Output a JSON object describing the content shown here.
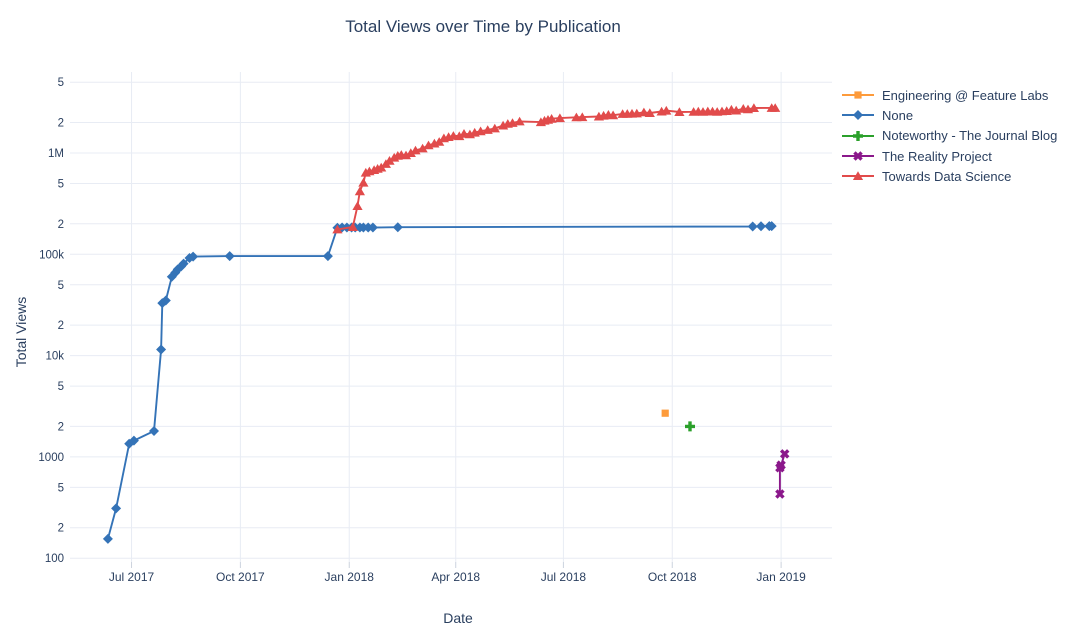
{
  "chart_data": {
    "type": "scatter",
    "title": "Total Views over Time by Publication",
    "xlabel": "Date",
    "ylabel": "Total Views",
    "y_scale": "log",
    "grid": true,
    "legend_position": "right",
    "text_color": "#2a3f5f",
    "grid_color": "#e8ecf4",
    "x_range": [
      "2017-05-10",
      "2019-02-13"
    ],
    "y_range_log10": [
      1.9625,
      6.7996
    ],
    "x_ticks": [
      {
        "date": "2017-07-01",
        "label": "Jul 2017"
      },
      {
        "date": "2017-10-01",
        "label": "Oct 2017"
      },
      {
        "date": "2018-01-01",
        "label": "Jan 2018"
      },
      {
        "date": "2018-04-01",
        "label": "Apr 2018"
      },
      {
        "date": "2018-07-01",
        "label": "Jul 2018"
      },
      {
        "date": "2018-10-01",
        "label": "Oct 2018"
      },
      {
        "date": "2019-01-01",
        "label": "Jan 2019"
      }
    ],
    "y_ticks": [
      {
        "value": 5000000,
        "label": "5"
      },
      {
        "value": 2000000,
        "label": "2"
      },
      {
        "value": 1000000,
        "label": "1M"
      },
      {
        "value": 500000,
        "label": "5"
      },
      {
        "value": 200000,
        "label": "2"
      },
      {
        "value": 100000,
        "label": "100k"
      },
      {
        "value": 50000,
        "label": "5"
      },
      {
        "value": 20000,
        "label": "2"
      },
      {
        "value": 10000,
        "label": "10k"
      },
      {
        "value": 5000,
        "label": "5"
      },
      {
        "value": 2000,
        "label": "2"
      },
      {
        "value": 1000,
        "label": "1000"
      },
      {
        "value": 500,
        "label": "5"
      },
      {
        "value": 200,
        "label": "2"
      },
      {
        "value": 100,
        "label": "100"
      }
    ],
    "series": [
      {
        "name": "Engineering @ Feature Labs",
        "color": "#fd9b3b",
        "marker": "square",
        "segments": [
          [
            [
              "2018-09-25",
              2700
            ]
          ]
        ]
      },
      {
        "name": "None",
        "color": "#3473b7",
        "marker": "diamond",
        "segments": [
          [
            [
              "2017-06-11",
              155
            ],
            [
              "2017-06-18",
              310
            ],
            [
              "2017-06-29",
              1350
            ],
            [
              "2017-07-03",
              1450
            ],
            [
              "2017-07-20",
              1800
            ],
            [
              "2017-07-26",
              11500
            ],
            [
              "2017-07-27",
              33000
            ],
            [
              "2017-07-30",
              35000
            ],
            [
              "2017-08-04",
              60000
            ],
            [
              "2017-08-07",
              66000
            ],
            [
              "2017-08-09",
              71000
            ],
            [
              "2017-08-12",
              76000
            ],
            [
              "2017-08-14",
              81000
            ],
            [
              "2017-08-19",
              92000
            ],
            [
              "2017-08-22",
              95000
            ],
            [
              "2017-09-22",
              96000
            ],
            [
              "2017-12-14",
              96000
            ],
            [
              "2017-12-22",
              183000
            ],
            [
              "2017-12-26",
              184000
            ],
            [
              "2017-12-30",
              184000
            ],
            [
              "2018-01-03",
              184000
            ],
            [
              "2018-01-06",
              184000
            ],
            [
              "2018-01-10",
              184000
            ],
            [
              "2018-01-13",
              184000
            ],
            [
              "2018-01-17",
              184000
            ],
            [
              "2018-01-21",
              184000
            ],
            [
              "2018-02-11",
              185000
            ],
            [
              "2018-12-08",
              188000
            ],
            [
              "2018-12-15",
              189000
            ],
            [
              "2018-12-22",
              190000
            ],
            [
              "2018-12-24",
              190000
            ]
          ]
        ]
      },
      {
        "name": "Noteworthy - The Journal Blog",
        "color": "#2ba02b",
        "marker": "cross",
        "segments": [
          [
            [
              "2018-10-16",
              2000
            ]
          ]
        ]
      },
      {
        "name": "The Reality Project",
        "color": "#8b188b",
        "marker": "x",
        "segments": [
          [
            [
              "2018-12-31",
              430
            ],
            [
              "2018-12-31",
              780
            ],
            [
              "2019-01-01",
              830
            ],
            [
              "2019-01-04",
              1070
            ]
          ]
        ]
      },
      {
        "name": "Towards Data Science",
        "color": "#e14b4b",
        "marker": "triangle-up",
        "segments": [
          [
            [
              "2017-12-22",
              176000
            ],
            [
              "2018-01-04",
              186000
            ],
            [
              "2018-01-08",
              300000
            ],
            [
              "2018-01-10",
              420000
            ],
            [
              "2018-01-13",
              510000
            ],
            [
              "2018-01-15",
              640000
            ],
            [
              "2018-01-18",
              660000
            ],
            [
              "2018-01-22",
              680000
            ],
            [
              "2018-01-25",
              700000
            ],
            [
              "2018-01-28",
              720000
            ],
            [
              "2018-02-01",
              780000
            ],
            [
              "2018-02-04",
              840000
            ],
            [
              "2018-02-08",
              900000
            ],
            [
              "2018-02-11",
              940000
            ],
            [
              "2018-02-14",
              960000
            ],
            [
              "2018-02-18",
              950000
            ],
            [
              "2018-02-22",
              1000000
            ],
            [
              "2018-02-26",
              1060000
            ],
            [
              "2018-03-04",
              1110000
            ],
            [
              "2018-03-09",
              1190000
            ],
            [
              "2018-03-14",
              1240000
            ],
            [
              "2018-03-18",
              1290000
            ],
            [
              "2018-03-22",
              1400000
            ],
            [
              "2018-03-26",
              1440000
            ],
            [
              "2018-03-30",
              1480000
            ],
            [
              "2018-04-04",
              1470000
            ],
            [
              "2018-04-08",
              1550000
            ],
            [
              "2018-04-13",
              1530000
            ],
            [
              "2018-04-17",
              1590000
            ],
            [
              "2018-04-22",
              1640000
            ],
            [
              "2018-04-28",
              1690000
            ],
            [
              "2018-05-04",
              1750000
            ],
            [
              "2018-05-11",
              1870000
            ],
            [
              "2018-05-15",
              1940000
            ],
            [
              "2018-05-19",
              1980000
            ],
            [
              "2018-05-25",
              2050000
            ],
            [
              "2018-06-12",
              2020000
            ],
            [
              "2018-06-15",
              2090000
            ],
            [
              "2018-06-18",
              2130000
            ],
            [
              "2018-06-21",
              2180000
            ],
            [
              "2018-06-28",
              2210000
            ],
            [
              "2018-07-12",
              2250000
            ],
            [
              "2018-07-17",
              2260000
            ],
            [
              "2018-07-31",
              2290000
            ],
            [
              "2018-08-04",
              2340000
            ],
            [
              "2018-08-08",
              2390000
            ],
            [
              "2018-08-12",
              2360000
            ],
            [
              "2018-08-20",
              2430000
            ],
            [
              "2018-08-24",
              2440000
            ],
            [
              "2018-08-28",
              2450000
            ],
            [
              "2018-09-01",
              2460000
            ],
            [
              "2018-09-07",
              2520000
            ],
            [
              "2018-09-12",
              2480000
            ],
            [
              "2018-09-22",
              2570000
            ],
            [
              "2018-09-26",
              2620000
            ],
            [
              "2018-10-07",
              2540000
            ],
            [
              "2018-10-19",
              2550000
            ],
            [
              "2018-10-23",
              2570000
            ],
            [
              "2018-10-27",
              2550000
            ],
            [
              "2018-10-31",
              2580000
            ],
            [
              "2018-11-04",
              2570000
            ],
            [
              "2018-11-08",
              2550000
            ],
            [
              "2018-11-12",
              2580000
            ],
            [
              "2018-11-16",
              2600000
            ],
            [
              "2018-11-20",
              2680000
            ],
            [
              "2018-11-24",
              2630000
            ],
            [
              "2018-11-30",
              2740000
            ],
            [
              "2018-12-04",
              2700000
            ],
            [
              "2018-12-09",
              2780000
            ],
            [
              "2018-12-24",
              2790000
            ],
            [
              "2018-12-27",
              2790000
            ]
          ]
        ]
      }
    ]
  }
}
